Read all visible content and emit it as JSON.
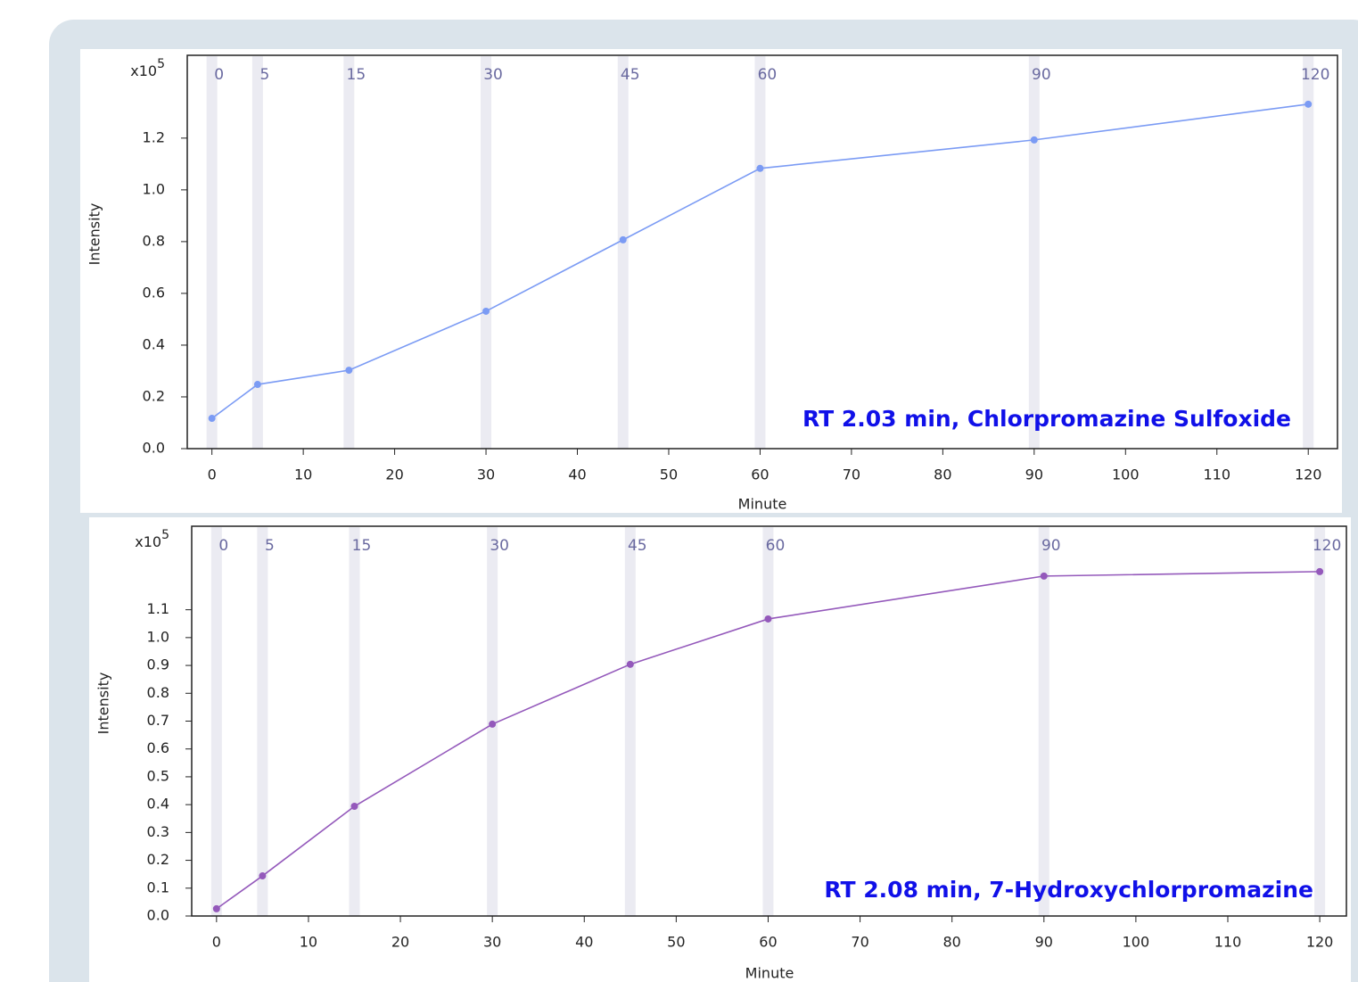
{
  "chart_data": [
    {
      "type": "line",
      "annotation": "RT 2.03 min, Chlorpromazine Sulfoxide",
      "x_label": "Minute",
      "y_label": "Intensity",
      "y_scale_base": "x10",
      "y_scale_exponent": "5",
      "x": [
        0,
        5,
        15,
        30,
        45,
        60,
        90,
        120
      ],
      "series": [
        {
          "color": "#7b9bf4",
          "values": [
            0.117,
            0.248,
            0.303,
            0.531,
            0.807,
            1.083,
            1.193,
            1.331
          ]
        }
      ],
      "xlim": [
        -2.7,
        123.2
      ],
      "xticks": [
        0,
        10,
        20,
        30,
        40,
        50,
        60,
        70,
        80,
        90,
        100,
        110,
        120
      ],
      "ylim": [
        0,
        1.52
      ],
      "yticks": [
        {
          "value": 0,
          "label": "0.0"
        },
        0.2,
        0.4,
        0.6,
        0.8,
        {
          "value": 1,
          "label": "1.0"
        },
        1.2
      ]
    },
    {
      "type": "line",
      "annotation": "RT 2.08 min, 7-Hydroxychlorpromazine",
      "x_label": "Minute",
      "y_label": "Intensity",
      "y_scale_base": "x10",
      "y_scale_exponent": "5",
      "x": [
        0,
        5,
        15,
        30,
        45,
        60,
        90,
        120
      ],
      "series": [
        {
          "color": "#9459bb",
          "values": [
            0.026,
            0.144,
            0.394,
            0.689,
            0.904,
            1.067,
            1.221,
            1.237
          ]
        }
      ],
      "xlim": [
        -2.7,
        122.9
      ],
      "xticks": [
        0,
        10,
        20,
        30,
        40,
        50,
        60,
        70,
        80,
        90,
        100,
        110,
        120
      ],
      "ylim": [
        0,
        1.4
      ],
      "yticks": [
        {
          "value": 0,
          "label": "0.0"
        },
        0.1,
        0.2,
        0.3,
        0.4,
        0.5,
        0.6,
        0.7,
        0.8,
        0.9,
        {
          "value": 1,
          "label": "1.0"
        },
        1.1
      ]
    }
  ]
}
